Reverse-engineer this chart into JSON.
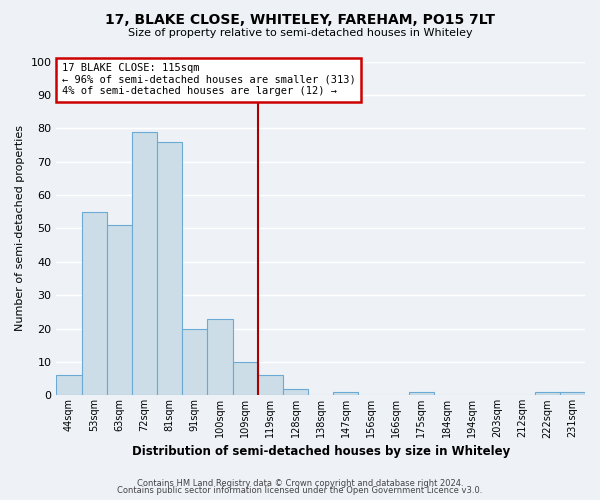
{
  "title": "17, BLAKE CLOSE, WHITELEY, FAREHAM, PO15 7LT",
  "subtitle": "Size of property relative to semi-detached houses in Whiteley",
  "xlabel": "Distribution of semi-detached houses by size in Whiteley",
  "ylabel": "Number of semi-detached properties",
  "bin_labels": [
    "44sqm",
    "53sqm",
    "63sqm",
    "72sqm",
    "81sqm",
    "91sqm",
    "100sqm",
    "109sqm",
    "119sqm",
    "128sqm",
    "138sqm",
    "147sqm",
    "156sqm",
    "166sqm",
    "175sqm",
    "184sqm",
    "194sqm",
    "203sqm",
    "212sqm",
    "222sqm",
    "231sqm"
  ],
  "bar_heights": [
    6,
    55,
    51,
    79,
    76,
    20,
    23,
    10,
    6,
    2,
    0,
    1,
    0,
    0,
    1,
    0,
    0,
    0,
    0,
    1,
    1
  ],
  "bar_color": "#ccdde8",
  "bar_edge_color": "#6aaad4",
  "vline_color": "#aa0000",
  "annotation_line1": "17 BLAKE CLOSE: 115sqm",
  "annotation_line2": "← 96% of semi-detached houses are smaller (313)",
  "annotation_line3": "4% of semi-detached houses are larger (12) →",
  "annotation_box_color": "#cc0000",
  "ylim": [
    0,
    100
  ],
  "yticks": [
    0,
    10,
    20,
    30,
    40,
    50,
    60,
    70,
    80,
    90,
    100
  ],
  "footer1": "Contains HM Land Registry data © Crown copyright and database right 2024.",
  "footer2": "Contains public sector information licensed under the Open Government Licence v3.0.",
  "background_color": "#eef2f7",
  "plot_background": "#eef2f7",
  "grid_color": "#ffffff"
}
